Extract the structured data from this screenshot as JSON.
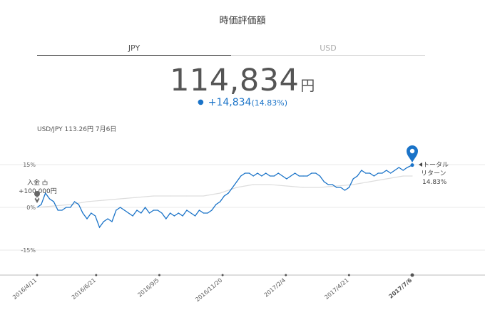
{
  "header": {
    "title": "時価評価額"
  },
  "tabs": [
    {
      "label": "JPY",
      "active": true
    },
    {
      "label": "USD",
      "active": false
    }
  ],
  "valuation": {
    "amount": "114,834",
    "unit": "円",
    "change": "+14,834",
    "change_pct": "(14.83%)"
  },
  "fx_rate": "USD/JPY 113.26円 7月6日",
  "annotations": {
    "deposit_label": "入金",
    "deposit_icon": "building-icon",
    "deposit_amount": "+100,000円",
    "total_return_line1": "トータル",
    "total_return_line2": "リターン",
    "total_return_pct": "14.83%"
  },
  "colors": {
    "accent": "#1a73c8",
    "benchmark": "#dddddd",
    "grid": "#e8e8e8"
  },
  "chart_data": {
    "type": "line",
    "title": "",
    "xlabel": "",
    "ylabel": "",
    "ylim": [
      -25,
      22
    ],
    "y_ticks": [
      {
        "value": 15,
        "label": "15%"
      },
      {
        "value": 0,
        "label": "0%"
      },
      {
        "value": -15,
        "label": "-15%"
      }
    ],
    "x_ticks": [
      {
        "date": "2016-04-11",
        "label": "2016/4/11"
      },
      {
        "date": "2016-06-21",
        "label": "2016/6/21"
      },
      {
        "date": "2016-09-05",
        "label": "2016/9/5"
      },
      {
        "date": "2016-11-20",
        "label": "2016/11/20"
      },
      {
        "date": "2017-02-04",
        "label": "2017/2/4"
      },
      {
        "date": "2017-04-21",
        "label": "2017/4/21"
      },
      {
        "date": "2017-07-06",
        "label": "2017/7/6",
        "bold": true
      }
    ],
    "x_range": [
      "2016-04-11",
      "2017-07-06"
    ],
    "series": [
      {
        "role": "portfolio",
        "color": "#1a73c8",
        "points": [
          [
            "2016-04-11",
            0
          ],
          [
            "2016-04-16",
            1
          ],
          [
            "2016-04-21",
            5
          ],
          [
            "2016-04-26",
            3
          ],
          [
            "2016-05-01",
            2
          ],
          [
            "2016-05-06",
            -1
          ],
          [
            "2016-05-11",
            -1
          ],
          [
            "2016-05-16",
            0
          ],
          [
            "2016-05-21",
            0
          ],
          [
            "2016-05-26",
            2
          ],
          [
            "2016-05-31",
            1
          ],
          [
            "2016-06-05",
            -2
          ],
          [
            "2016-06-10",
            -4
          ],
          [
            "2016-06-15",
            -2
          ],
          [
            "2016-06-20",
            -3
          ],
          [
            "2016-06-25",
            -7
          ],
          [
            "2016-06-30",
            -5
          ],
          [
            "2016-07-05",
            -4
          ],
          [
            "2016-07-10",
            -5
          ],
          [
            "2016-07-15",
            -1
          ],
          [
            "2016-07-20",
            0
          ],
          [
            "2016-07-25",
            -1
          ],
          [
            "2016-07-30",
            -2
          ],
          [
            "2016-08-04",
            -3
          ],
          [
            "2016-08-09",
            -1
          ],
          [
            "2016-08-14",
            -2
          ],
          [
            "2016-08-19",
            0
          ],
          [
            "2016-08-24",
            -2
          ],
          [
            "2016-08-29",
            -1
          ],
          [
            "2016-09-03",
            -1
          ],
          [
            "2016-09-08",
            -2
          ],
          [
            "2016-09-13",
            -4
          ],
          [
            "2016-09-18",
            -2
          ],
          [
            "2016-09-23",
            -3
          ],
          [
            "2016-09-28",
            -2
          ],
          [
            "2016-10-03",
            -3
          ],
          [
            "2016-10-08",
            -1
          ],
          [
            "2016-10-13",
            -2
          ],
          [
            "2016-10-18",
            -3
          ],
          [
            "2016-10-23",
            -1
          ],
          [
            "2016-10-28",
            -2
          ],
          [
            "2016-11-02",
            -2
          ],
          [
            "2016-11-07",
            -1
          ],
          [
            "2016-11-12",
            1
          ],
          [
            "2016-11-17",
            2
          ],
          [
            "2016-11-22",
            4
          ],
          [
            "2016-11-27",
            5
          ],
          [
            "2016-12-02",
            7
          ],
          [
            "2016-12-07",
            9
          ],
          [
            "2016-12-12",
            11
          ],
          [
            "2016-12-17",
            12
          ],
          [
            "2016-12-22",
            12
          ],
          [
            "2016-12-27",
            11
          ],
          [
            "2017-01-01",
            12
          ],
          [
            "2017-01-06",
            11
          ],
          [
            "2017-01-11",
            12
          ],
          [
            "2017-01-16",
            11
          ],
          [
            "2017-01-21",
            11
          ],
          [
            "2017-01-26",
            12
          ],
          [
            "2017-01-31",
            11
          ],
          [
            "2017-02-05",
            10
          ],
          [
            "2017-02-10",
            11
          ],
          [
            "2017-02-15",
            12
          ],
          [
            "2017-02-20",
            11
          ],
          [
            "2017-02-25",
            11
          ],
          [
            "2017-03-02",
            11
          ],
          [
            "2017-03-07",
            12
          ],
          [
            "2017-03-12",
            12
          ],
          [
            "2017-03-17",
            11
          ],
          [
            "2017-03-22",
            9
          ],
          [
            "2017-03-27",
            8
          ],
          [
            "2017-04-01",
            8
          ],
          [
            "2017-04-06",
            7
          ],
          [
            "2017-04-11",
            7
          ],
          [
            "2017-04-16",
            6
          ],
          [
            "2017-04-21",
            7
          ],
          [
            "2017-04-26",
            10
          ],
          [
            "2017-05-01",
            11
          ],
          [
            "2017-05-06",
            13
          ],
          [
            "2017-05-11",
            12
          ],
          [
            "2017-05-16",
            12
          ],
          [
            "2017-05-21",
            11
          ],
          [
            "2017-05-26",
            12
          ],
          [
            "2017-05-31",
            12
          ],
          [
            "2017-06-05",
            13
          ],
          [
            "2017-06-10",
            12
          ],
          [
            "2017-06-15",
            13
          ],
          [
            "2017-06-20",
            14
          ],
          [
            "2017-06-25",
            13
          ],
          [
            "2017-06-30",
            14
          ],
          [
            "2017-07-06",
            14.83
          ]
        ]
      },
      {
        "role": "benchmark",
        "color": "#dddddd",
        "points": [
          [
            "2016-04-11",
            0
          ],
          [
            "2016-05-01",
            0.5
          ],
          [
            "2016-05-21",
            1
          ],
          [
            "2016-06-10",
            2
          ],
          [
            "2016-06-30",
            2.5
          ],
          [
            "2016-07-20",
            3
          ],
          [
            "2016-08-09",
            3.5
          ],
          [
            "2016-08-29",
            4
          ],
          [
            "2016-09-18",
            4
          ],
          [
            "2016-10-08",
            4
          ],
          [
            "2016-10-28",
            4
          ],
          [
            "2016-11-17",
            5
          ],
          [
            "2016-12-07",
            7
          ],
          [
            "2016-12-27",
            8
          ],
          [
            "2017-01-16",
            8
          ],
          [
            "2017-02-05",
            7.5
          ],
          [
            "2017-02-25",
            7
          ],
          [
            "2017-03-17",
            7
          ],
          [
            "2017-04-06",
            7.5
          ],
          [
            "2017-04-26",
            8
          ],
          [
            "2017-05-16",
            9
          ],
          [
            "2017-06-05",
            10
          ],
          [
            "2017-06-25",
            11
          ],
          [
            "2017-07-06",
            11
          ]
        ]
      }
    ]
  }
}
